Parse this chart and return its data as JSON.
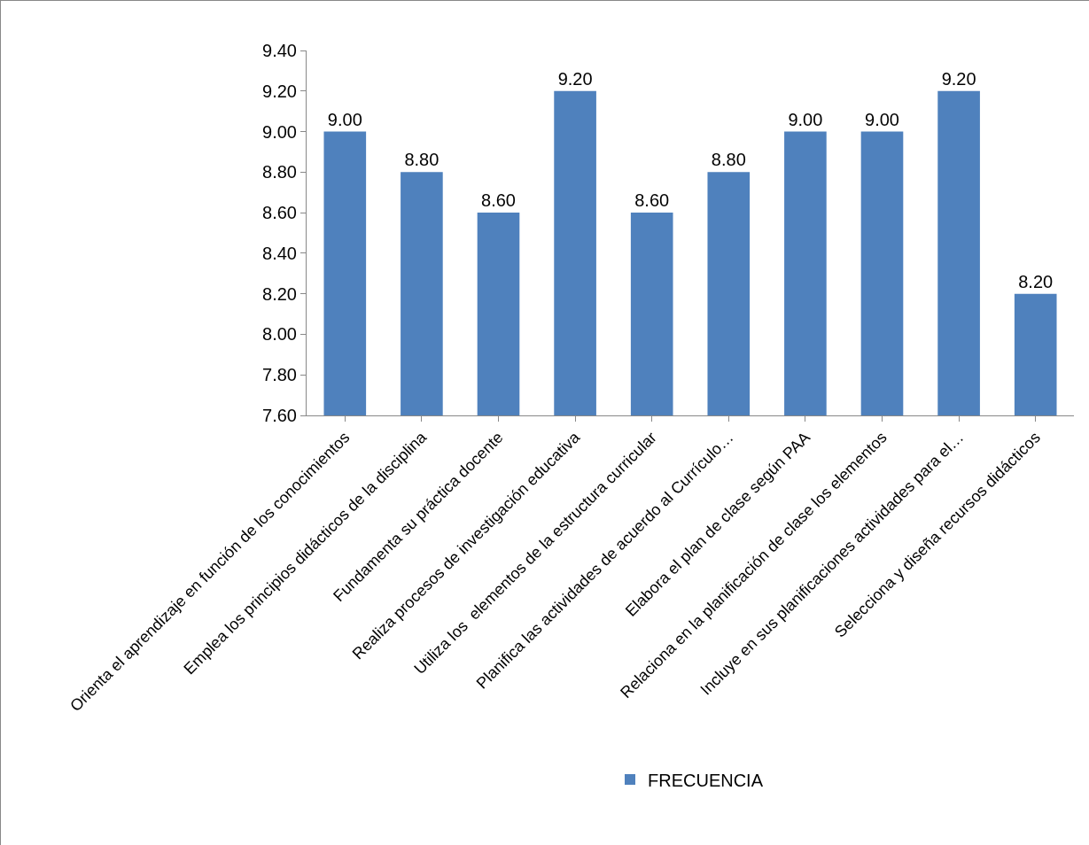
{
  "chart_data": {
    "type": "bar",
    "categories": [
      "Orienta el aprendizaje en función de los conocimientos",
      "Emplea los principios didácticos de la disciplina",
      "Fundamenta su práctica docente",
      "Realiza procesos de investigación educativa",
      "Utiliza los  elementos de la estructura curricular",
      "Planifica las actividades de acuerdo al Currículo…",
      "Elabora el plan de clase según PAA",
      "Relaciona en la planificación de clase los elementos",
      "Incluye en sus planificaciones actividades para el…",
      "Selecciona y diseña recursos didácticos"
    ],
    "series": [
      {
        "name": "FRECUENCIA",
        "color": "#4f81bd",
        "values": [
          9.0,
          8.8,
          8.6,
          9.2,
          8.6,
          8.8,
          9.0,
          9.0,
          9.2,
          8.2
        ],
        "value_labels": [
          "9.00",
          "8.80",
          "8.60",
          "9.20",
          "8.60",
          "8.80",
          "9.00",
          "9.00",
          "9.20",
          "8.20"
        ]
      }
    ],
    "ylim": [
      7.6,
      9.4
    ],
    "yticks": [
      {
        "value": 7.6,
        "label": "7.60"
      },
      {
        "value": 7.8,
        "label": "7.80"
      },
      {
        "value": 8.0,
        "label": "8.00"
      },
      {
        "value": 8.2,
        "label": "8.20"
      },
      {
        "value": 8.4,
        "label": "8.40"
      },
      {
        "value": 8.6,
        "label": "8.60"
      },
      {
        "value": 8.8,
        "label": "8.80"
      },
      {
        "value": 9.0,
        "label": "9.00"
      },
      {
        "value": 9.2,
        "label": "9.20"
      },
      {
        "value": 9.4,
        "label": "9.40"
      }
    ],
    "grid": false,
    "legend": "bottom"
  }
}
